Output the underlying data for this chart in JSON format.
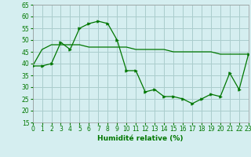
{
  "line1_x": [
    0,
    1,
    2,
    3,
    4,
    5,
    6,
    7,
    8,
    9,
    10,
    11,
    12,
    13,
    14,
    15,
    16,
    17,
    18,
    19,
    20,
    21,
    22,
    23
  ],
  "line1_y": [
    39,
    39,
    40,
    49,
    46,
    55,
    57,
    58,
    57,
    50,
    37,
    37,
    28,
    29,
    26,
    26,
    25,
    23,
    25,
    27,
    26,
    36,
    29,
    44
  ],
  "line2_x": [
    0,
    1,
    2,
    3,
    4,
    5,
    6,
    7,
    8,
    9,
    10,
    11,
    12,
    13,
    14,
    15,
    16,
    17,
    18,
    19,
    20,
    21,
    22,
    23
  ],
  "line2_y": [
    39,
    46,
    48,
    48,
    48,
    48,
    47,
    47,
    47,
    47,
    47,
    46,
    46,
    46,
    46,
    45,
    45,
    45,
    45,
    45,
    44,
    44,
    44,
    44
  ],
  "line_color": "#007700",
  "bg_color": "#d5eef0",
  "grid_color": "#aacccc",
  "xlabel": "Humidité relative (%)",
  "ylim": [
    15,
    65
  ],
  "xlim": [
    0,
    23
  ],
  "yticks": [
    15,
    20,
    25,
    30,
    35,
    40,
    45,
    50,
    55,
    60,
    65
  ],
  "xticks": [
    0,
    1,
    2,
    3,
    4,
    5,
    6,
    7,
    8,
    9,
    10,
    11,
    12,
    13,
    14,
    15,
    16,
    17,
    18,
    19,
    20,
    21,
    22,
    23
  ],
  "tick_labelsize": 5.5,
  "xlabel_fontsize": 6.5
}
